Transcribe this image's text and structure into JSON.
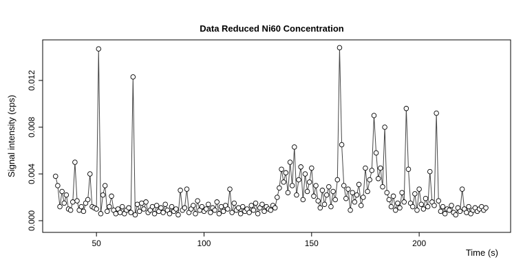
{
  "chart_data": {
    "type": "line",
    "title": "Data Reduced Ni60 Concentration",
    "x_label": "Time (s)",
    "y_label": "Signal intensity (cps)",
    "x": [
      31,
      32,
      33,
      34,
      35,
      36,
      37,
      38,
      39,
      40,
      41,
      42,
      43,
      44,
      45,
      46,
      47,
      48,
      49,
      50,
      51,
      52,
      53,
      54,
      55,
      56,
      57,
      58,
      59,
      60,
      61,
      62,
      63,
      64,
      65,
      66,
      67,
      68,
      69,
      70,
      71,
      72,
      73,
      74,
      75,
      76,
      77,
      78,
      79,
      80,
      81,
      82,
      83,
      84,
      85,
      86,
      87,
      88,
      89,
      90,
      91,
      92,
      93,
      94,
      95,
      96,
      97,
      98,
      99,
      100,
      101,
      102,
      103,
      104,
      105,
      106,
      107,
      108,
      109,
      110,
      111,
      112,
      113,
      114,
      115,
      116,
      117,
      118,
      119,
      120,
      121,
      122,
      123,
      124,
      125,
      126,
      127,
      128,
      129,
      130,
      131,
      132,
      133,
      134,
      135,
      136,
      137,
      138,
      139,
      140,
      141,
      142,
      143,
      144,
      145,
      146,
      147,
      148,
      149,
      150,
      151,
      152,
      153,
      154,
      155,
      156,
      157,
      158,
      159,
      160,
      161,
      162,
      163,
      164,
      165,
      166,
      167,
      168,
      169,
      170,
      171,
      172,
      173,
      174,
      175,
      176,
      177,
      178,
      179,
      180,
      181,
      182,
      183,
      184,
      185,
      186,
      187,
      188,
      189,
      190,
      191,
      192,
      193,
      194,
      195,
      196,
      197,
      198,
      199,
      200,
      201,
      202,
      203,
      204,
      205,
      206,
      207,
      208,
      209,
      210,
      211,
      212,
      213,
      214,
      215,
      216,
      217,
      218,
      219,
      220,
      221,
      222,
      223,
      224,
      225,
      226,
      227,
      228,
      229,
      230,
      231
    ],
    "series": [
      {
        "color": "#000000",
        "values": [
          0.0038,
          0.003,
          0.0012,
          0.0025,
          0.0015,
          0.0022,
          0.001,
          0.0009,
          0.0016,
          0.005,
          0.0017,
          0.0009,
          0.0012,
          0.0008,
          0.0015,
          0.0018,
          0.004,
          0.0012,
          0.0011,
          0.001,
          0.0147,
          0.0006,
          0.0022,
          0.003,
          0.0008,
          0.0012,
          0.0021,
          0.0009,
          0.0006,
          0.001,
          0.0007,
          0.0012,
          0.0006,
          0.0009,
          0.0011,
          0.0007,
          0.0123,
          0.0005,
          0.0014,
          0.0008,
          0.0015,
          0.001,
          0.0016,
          0.0007,
          0.0009,
          0.0012,
          0.0006,
          0.0013,
          0.0008,
          0.0011,
          0.0007,
          0.0014,
          0.0009,
          0.0006,
          0.0012,
          0.0008,
          0.001,
          0.0005,
          0.0026,
          0.0009,
          0.0011,
          0.0027,
          0.0007,
          0.001,
          0.0013,
          0.0006,
          0.0017,
          0.0009,
          0.0012,
          0.0008,
          0.001,
          0.0014,
          0.0007,
          0.0011,
          0.0009,
          0.0016,
          0.0006,
          0.0012,
          0.0008,
          0.0013,
          0.001,
          0.0027,
          0.0007,
          0.0015,
          0.0009,
          0.0011,
          0.0006,
          0.0012,
          0.0008,
          0.001,
          0.0007,
          0.0013,
          0.0009,
          0.0015,
          0.0006,
          0.0011,
          0.0014,
          0.0008,
          0.0012,
          0.001,
          0.0009,
          0.0013,
          0.0011,
          0.002,
          0.0028,
          0.0044,
          0.0033,
          0.0041,
          0.0024,
          0.005,
          0.003,
          0.0063,
          0.0022,
          0.0035,
          0.0046,
          0.0018,
          0.004,
          0.0025,
          0.0033,
          0.0045,
          0.0021,
          0.003,
          0.0017,
          0.0011,
          0.0026,
          0.0014,
          0.0022,
          0.0029,
          0.0012,
          0.0025,
          0.0018,
          0.0035,
          0.0148,
          0.0065,
          0.003,
          0.0019,
          0.0027,
          0.0009,
          0.0024,
          0.0016,
          0.0022,
          0.0031,
          0.0013,
          0.002,
          0.0045,
          0.0025,
          0.0035,
          0.0043,
          0.009,
          0.0058,
          0.0036,
          0.0045,
          0.0029,
          0.008,
          0.0024,
          0.0018,
          0.0012,
          0.0021,
          0.0009,
          0.0015,
          0.0011,
          0.0024,
          0.0016,
          0.0096,
          0.0044,
          0.0015,
          0.0012,
          0.0023,
          0.0009,
          0.0027,
          0.0014,
          0.001,
          0.0019,
          0.0012,
          0.0042,
          0.0016,
          0.0013,
          0.0092,
          0.0017,
          0.0008,
          0.0012,
          0.0006,
          0.001,
          0.0009,
          0.0013,
          0.0007,
          0.0005,
          0.0011,
          0.0008,
          0.0027,
          0.001,
          0.0007,
          0.0012,
          0.0006,
          0.0009,
          0.0011,
          0.0008,
          0.001,
          0.0012,
          0.0009,
          0.0011
        ]
      }
    ],
    "xlim": [
      25,
      242.5
    ],
    "ylim": [
      -0.001,
      0.01547
    ],
    "xticks": [
      50,
      100,
      150,
      200
    ],
    "yticks": [
      {
        "value": 0,
        "label": "0.000"
      },
      {
        "value": 0.004,
        "label": "0.004"
      },
      {
        "value": 0.008,
        "label": "0.008"
      },
      {
        "value": 0.012,
        "label": "0.012"
      }
    ]
  }
}
